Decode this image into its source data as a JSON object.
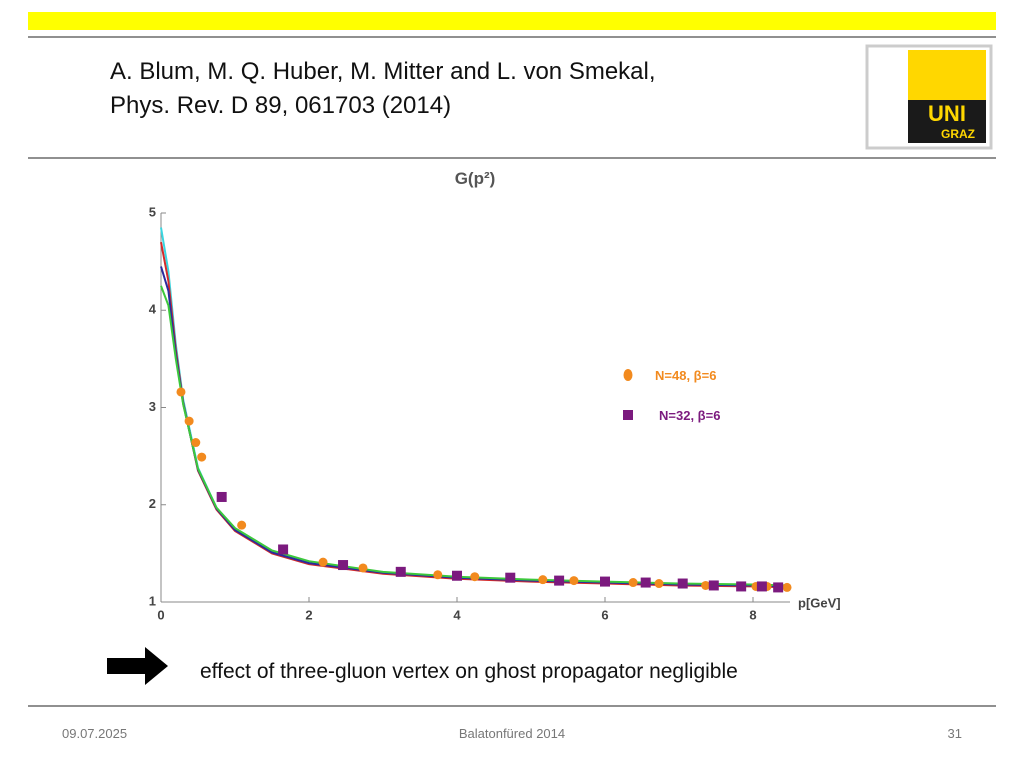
{
  "header": {
    "authors": "A.  Blum, M. Q. Huber, M. Mitter and L. von Smekal,",
    "reference": "Phys. Rev. D 89, 061703 (2014)"
  },
  "logo": {
    "line1": "UNI",
    "line2": "GRAZ"
  },
  "conclusion": "effect of three-gluon vertex on ghost propagator negligible",
  "footer": {
    "date": "09.07.2025",
    "event": "Balatonfüred 2014",
    "page": "31"
  },
  "chart_data": {
    "type": "scatter",
    "title": "G(p²)",
    "x_label": "p[GeV]",
    "xlim": [
      0,
      8.5
    ],
    "ylim": [
      1,
      5
    ],
    "xticks": [
      0,
      2,
      4,
      6,
      8
    ],
    "yticks": [
      1,
      2,
      3,
      4,
      5
    ],
    "series": [
      {
        "name": "N=48, β=6",
        "color": "#f28a1e",
        "marker": "circle",
        "x": [
          0.27,
          0.38,
          0.47,
          0.55,
          1.09,
          2.19,
          2.73,
          3.74,
          4.24,
          5.16,
          5.58,
          6.38,
          6.73,
          7.36,
          8.04,
          8.19,
          8.46
        ],
        "values": [
          3.16,
          2.86,
          2.64,
          2.49,
          1.79,
          1.41,
          1.35,
          1.28,
          1.26,
          1.23,
          1.22,
          1.2,
          1.19,
          1.17,
          1.16,
          1.16,
          1.15
        ]
      },
      {
        "name": "N=32, β=6",
        "color": "#7b1a7e",
        "marker": "square",
        "x": [
          0.82,
          1.65,
          2.46,
          3.24,
          4.0,
          4.72,
          5.38,
          6.0,
          6.55,
          7.05,
          7.47,
          7.84,
          8.12,
          8.34
        ],
        "values": [
          2.08,
          1.54,
          1.38,
          1.31,
          1.27,
          1.25,
          1.22,
          1.21,
          1.2,
          1.19,
          1.17,
          1.16,
          1.16,
          1.15
        ]
      }
    ],
    "curves": [
      {
        "color": "#3ad6e0",
        "x": [
          0,
          0.1,
          0.2,
          0.3,
          0.5,
          0.75,
          1,
          1.5,
          2,
          3,
          4,
          5,
          6,
          7,
          8,
          8.5
        ],
        "values": [
          4.85,
          4.4,
          3.65,
          3.08,
          2.38,
          1.97,
          1.75,
          1.52,
          1.41,
          1.3,
          1.25,
          1.22,
          1.2,
          1.18,
          1.17,
          1.16
        ]
      },
      {
        "color": "#d42a2a",
        "x": [
          0,
          0.1,
          0.2,
          0.3,
          0.5,
          0.75,
          1,
          1.5,
          2,
          3,
          4,
          5,
          6,
          7,
          8,
          8.5
        ],
        "values": [
          4.7,
          4.3,
          3.6,
          3.05,
          2.35,
          1.95,
          1.73,
          1.5,
          1.39,
          1.29,
          1.24,
          1.21,
          1.19,
          1.17,
          1.16,
          1.15
        ]
      },
      {
        "color": "#2a2a9e",
        "x": [
          0,
          0.1,
          0.2,
          0.3,
          0.5,
          0.75,
          1,
          1.5,
          2,
          3,
          4,
          5,
          6,
          7,
          8,
          8.5
        ],
        "values": [
          4.45,
          4.2,
          3.55,
          3.04,
          2.36,
          1.96,
          1.74,
          1.51,
          1.4,
          1.3,
          1.25,
          1.22,
          1.2,
          1.18,
          1.17,
          1.16
        ]
      },
      {
        "color": "#3cc83c",
        "x": [
          0,
          0.1,
          0.2,
          0.3,
          0.5,
          0.75,
          1,
          1.5,
          2,
          3,
          4,
          5,
          6,
          7,
          8,
          8.5
        ],
        "values": [
          4.25,
          4.05,
          3.5,
          3.03,
          2.37,
          1.97,
          1.76,
          1.53,
          1.42,
          1.31,
          1.26,
          1.23,
          1.21,
          1.19,
          1.18,
          1.17
        ]
      }
    ]
  }
}
